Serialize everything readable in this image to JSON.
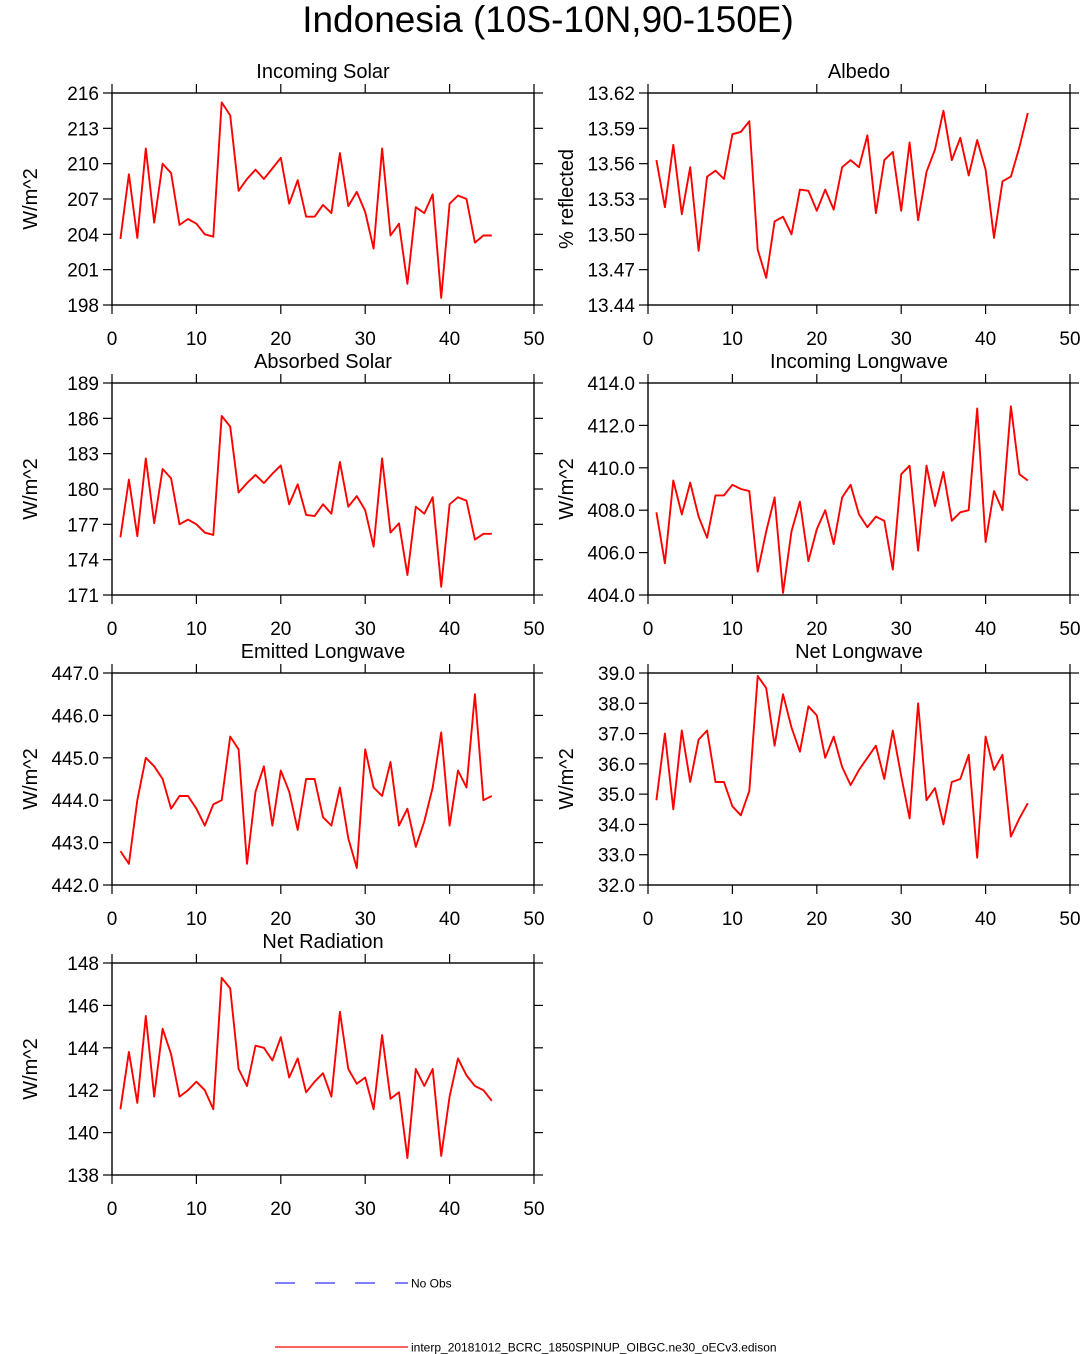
{
  "title": "Indonesia (10S-10N,90-150E)",
  "legend": [
    {
      "label": "No Obs",
      "color": "#0000ff",
      "style": "dashed"
    },
    {
      "label": "interp_20181012_BCRC_1850SPINUP_OIBGC.ne30_oECv3.edison",
      "color": "#ff0000",
      "style": "solid"
    }
  ],
  "chart_data": [
    {
      "type": "line",
      "title": "Incoming Solar",
      "ylabel": "W/m^2",
      "xlim": [
        0,
        50
      ],
      "xticks": [
        0,
        10,
        20,
        30,
        40,
        50
      ],
      "xtick_labels": [
        "0",
        "10",
        "20",
        "30",
        "40",
        "50"
      ],
      "ylim": [
        198,
        216
      ],
      "yticks": [
        198,
        201,
        204,
        207,
        210,
        213,
        216
      ],
      "ytick_labels": [
        "198",
        "201",
        "204",
        "207",
        "210",
        "213",
        "216"
      ],
      "series": [
        {
          "color": "#ff0000",
          "x": [
            1,
            2,
            3,
            4,
            5,
            6,
            7,
            8,
            9,
            10,
            11,
            12,
            13,
            14,
            15,
            16,
            17,
            18,
            19,
            20,
            21,
            22,
            23,
            24,
            25,
            26,
            27,
            28,
            29,
            30,
            31,
            32,
            33,
            34,
            35,
            36,
            37,
            38,
            39,
            40,
            41,
            42,
            43,
            44,
            45
          ],
          "values": [
            203.6,
            209.1,
            203.7,
            211.3,
            205.0,
            210.0,
            209.2,
            204.8,
            205.3,
            204.9,
            204.0,
            203.8,
            215.2,
            214.1,
            207.7,
            208.7,
            209.5,
            208.7,
            209.6,
            210.5,
            206.6,
            208.6,
            205.5,
            205.5,
            206.5,
            205.8,
            210.9,
            206.4,
            207.6,
            205.9,
            202.8,
            211.3,
            203.9,
            204.9,
            199.8,
            206.3,
            205.8,
            207.4,
            198.6,
            206.6,
            207.3,
            207.0,
            203.3,
            203.9,
            203.9
          ]
        }
      ]
    },
    {
      "type": "line",
      "title": "Albedo",
      "ylabel": "% reflected",
      "xlim": [
        0,
        50
      ],
      "xticks": [
        0,
        10,
        20,
        30,
        40,
        50
      ],
      "xtick_labels": [
        "0",
        "10",
        "20",
        "30",
        "40",
        "50"
      ],
      "ylim": [
        13.44,
        13.62
      ],
      "yticks": [
        13.44,
        13.47,
        13.5,
        13.53,
        13.56,
        13.59,
        13.62
      ],
      "ytick_labels": [
        "13.44",
        "13.47",
        "13.50",
        "13.53",
        "13.56",
        "13.59",
        "13.62"
      ],
      "series": [
        {
          "color": "#ff0000",
          "x": [
            1,
            2,
            3,
            4,
            5,
            6,
            7,
            8,
            9,
            10,
            11,
            12,
            13,
            14,
            15,
            16,
            17,
            18,
            19,
            20,
            21,
            22,
            23,
            24,
            25,
            26,
            27,
            28,
            29,
            30,
            31,
            32,
            33,
            34,
            35,
            36,
            37,
            38,
            39,
            40,
            41,
            42,
            43,
            44,
            45
          ],
          "values": [
            13.563,
            13.523,
            13.576,
            13.517,
            13.557,
            13.486,
            13.549,
            13.554,
            13.547,
            13.585,
            13.587,
            13.596,
            13.487,
            13.463,
            13.511,
            13.515,
            13.5,
            13.538,
            13.537,
            13.52,
            13.538,
            13.521,
            13.557,
            13.563,
            13.557,
            13.584,
            13.518,
            13.563,
            13.57,
            13.52,
            13.578,
            13.512,
            13.553,
            13.572,
            13.605,
            13.563,
            13.582,
            13.55,
            13.58,
            13.555,
            13.497,
            13.545,
            13.549,
            13.574,
            13.603
          ]
        }
      ]
    },
    {
      "type": "line",
      "title": "Absorbed Solar",
      "ylabel": "W/m^2",
      "xlim": [
        0,
        50
      ],
      "xticks": [
        0,
        10,
        20,
        30,
        40,
        50
      ],
      "xtick_labels": [
        "0",
        "10",
        "20",
        "30",
        "40",
        "50"
      ],
      "ylim": [
        171,
        189
      ],
      "yticks": [
        171,
        174,
        177,
        180,
        183,
        186,
        189
      ],
      "ytick_labels": [
        "171",
        "174",
        "177",
        "180",
        "183",
        "186",
        "189"
      ],
      "series": [
        {
          "color": "#ff0000",
          "x": [
            1,
            2,
            3,
            4,
            5,
            6,
            7,
            8,
            9,
            10,
            11,
            12,
            13,
            14,
            15,
            16,
            17,
            18,
            19,
            20,
            21,
            22,
            23,
            24,
            25,
            26,
            27,
            28,
            29,
            30,
            31,
            32,
            33,
            34,
            35,
            36,
            37,
            38,
            39,
            40,
            41,
            42,
            43,
            44,
            45
          ],
          "values": [
            175.9,
            180.8,
            176.0,
            182.6,
            177.1,
            181.7,
            180.9,
            177.0,
            177.4,
            177.0,
            176.3,
            176.1,
            186.2,
            185.3,
            179.7,
            180.5,
            181.2,
            180.5,
            181.3,
            182.0,
            178.7,
            180.4,
            177.8,
            177.7,
            178.7,
            177.9,
            182.3,
            178.5,
            179.4,
            178.2,
            175.1,
            182.6,
            176.3,
            177.1,
            172.7,
            178.5,
            177.9,
            179.3,
            171.7,
            178.7,
            179.3,
            179.0,
            175.7,
            176.2,
            176.2
          ]
        }
      ]
    },
    {
      "type": "line",
      "title": "Incoming Longwave",
      "ylabel": "W/m^2",
      "xlim": [
        0,
        50
      ],
      "xticks": [
        0,
        10,
        20,
        30,
        40,
        50
      ],
      "xtick_labels": [
        "0",
        "10",
        "20",
        "30",
        "40",
        "50"
      ],
      "ylim": [
        404.0,
        414.0
      ],
      "yticks": [
        404.0,
        406.0,
        408.0,
        410.0,
        412.0,
        414.0
      ],
      "ytick_labels": [
        "404.0",
        "406.0",
        "408.0",
        "410.0",
        "412.0",
        "414.0"
      ],
      "series": [
        {
          "color": "#ff0000",
          "x": [
            1,
            2,
            3,
            4,
            5,
            6,
            7,
            8,
            9,
            10,
            11,
            12,
            13,
            14,
            15,
            16,
            17,
            18,
            19,
            20,
            21,
            22,
            23,
            24,
            25,
            26,
            27,
            28,
            29,
            30,
            31,
            32,
            33,
            34,
            35,
            36,
            37,
            38,
            39,
            40,
            41,
            42,
            43,
            44,
            45
          ],
          "values": [
            407.9,
            405.5,
            409.4,
            407.8,
            409.3,
            407.7,
            406.7,
            408.7,
            408.7,
            409.2,
            409.0,
            408.9,
            405.1,
            407.0,
            408.6,
            404.1,
            407.0,
            408.4,
            405.6,
            407.1,
            408.0,
            406.4,
            408.6,
            409.2,
            407.8,
            407.2,
            407.7,
            407.5,
            405.2,
            409.7,
            410.1,
            406.1,
            410.1,
            408.2,
            409.8,
            407.5,
            407.9,
            408.0,
            412.8,
            406.5,
            408.9,
            408.0,
            412.9,
            409.7,
            409.4
          ]
        }
      ]
    },
    {
      "type": "line",
      "title": "Emitted Longwave",
      "ylabel": "W/m^2",
      "xlim": [
        0,
        50
      ],
      "xticks": [
        0,
        10,
        20,
        30,
        40,
        50
      ],
      "xtick_labels": [
        "0",
        "10",
        "20",
        "30",
        "40",
        "50"
      ],
      "ylim": [
        442.0,
        447.0
      ],
      "yticks": [
        442.0,
        443.0,
        444.0,
        445.0,
        446.0,
        447.0
      ],
      "ytick_labels": [
        "442.0",
        "443.0",
        "444.0",
        "445.0",
        "446.0",
        "447.0"
      ],
      "series": [
        {
          "color": "#ff0000",
          "x": [
            1,
            2,
            3,
            4,
            5,
            6,
            7,
            8,
            9,
            10,
            11,
            12,
            13,
            14,
            15,
            16,
            17,
            18,
            19,
            20,
            21,
            22,
            23,
            24,
            25,
            26,
            27,
            28,
            29,
            30,
            31,
            32,
            33,
            34,
            35,
            36,
            37,
            38,
            39,
            40,
            41,
            42,
            43,
            44,
            45
          ],
          "values": [
            442.8,
            442.5,
            444.0,
            445.0,
            444.8,
            444.5,
            443.8,
            444.1,
            444.1,
            443.8,
            443.4,
            443.9,
            444.0,
            445.5,
            445.2,
            442.5,
            444.2,
            444.8,
            443.4,
            444.7,
            444.2,
            443.3,
            444.5,
            444.5,
            443.6,
            443.4,
            444.3,
            443.1,
            442.4,
            445.2,
            444.3,
            444.1,
            444.9,
            443.4,
            443.8,
            442.9,
            443.5,
            444.3,
            445.6,
            443.4,
            444.7,
            444.3,
            446.5,
            444.0,
            444.1
          ]
        }
      ]
    },
    {
      "type": "line",
      "title": "Net Longwave",
      "ylabel": "W/m^2",
      "xlim": [
        0,
        50
      ],
      "xticks": [
        0,
        10,
        20,
        30,
        40,
        50
      ],
      "xtick_labels": [
        "0",
        "10",
        "20",
        "30",
        "40",
        "50"
      ],
      "ylim": [
        32.0,
        39.0
      ],
      "yticks": [
        32.0,
        33.0,
        34.0,
        35.0,
        36.0,
        37.0,
        38.0,
        39.0
      ],
      "ytick_labels": [
        "32.0",
        "33.0",
        "34.0",
        "35.0",
        "36.0",
        "37.0",
        "38.0",
        "39.0"
      ],
      "series": [
        {
          "color": "#ff0000",
          "x": [
            1,
            2,
            3,
            4,
            5,
            6,
            7,
            8,
            9,
            10,
            11,
            12,
            13,
            14,
            15,
            16,
            17,
            18,
            19,
            20,
            21,
            22,
            23,
            24,
            25,
            26,
            27,
            28,
            29,
            30,
            31,
            32,
            33,
            34,
            35,
            36,
            37,
            38,
            39,
            40,
            41,
            42,
            43,
            44,
            45
          ],
          "values": [
            34.8,
            37.0,
            34.5,
            37.1,
            35.4,
            36.8,
            37.1,
            35.4,
            35.4,
            34.6,
            34.3,
            35.1,
            38.9,
            38.5,
            36.6,
            38.3,
            37.2,
            36.4,
            37.9,
            37.6,
            36.2,
            36.9,
            35.9,
            35.3,
            35.8,
            36.2,
            36.6,
            35.5,
            37.1,
            35.6,
            34.2,
            38.0,
            34.8,
            35.2,
            34.0,
            35.4,
            35.5,
            36.3,
            32.9,
            36.9,
            35.8,
            36.3,
            33.6,
            34.2,
            34.7
          ]
        }
      ]
    },
    {
      "type": "line",
      "title": "Net Radiation",
      "ylabel": "W/m^2",
      "xlim": [
        0,
        50
      ],
      "xticks": [
        0,
        10,
        20,
        30,
        40,
        50
      ],
      "xtick_labels": [
        "0",
        "10",
        "20",
        "30",
        "40",
        "50"
      ],
      "ylim": [
        138,
        148
      ],
      "yticks": [
        138,
        140,
        142,
        144,
        146,
        148
      ],
      "ytick_labels": [
        "138",
        "140",
        "142",
        "144",
        "146",
        "148"
      ],
      "series": [
        {
          "color": "#ff0000",
          "x": [
            1,
            2,
            3,
            4,
            5,
            6,
            7,
            8,
            9,
            10,
            11,
            12,
            13,
            14,
            15,
            16,
            17,
            18,
            19,
            20,
            21,
            22,
            23,
            24,
            25,
            26,
            27,
            28,
            29,
            30,
            31,
            32,
            33,
            34,
            35,
            36,
            37,
            38,
            39,
            40,
            41,
            42,
            43,
            44,
            45
          ],
          "values": [
            141.1,
            143.8,
            141.4,
            145.5,
            141.7,
            144.9,
            143.7,
            141.7,
            142.0,
            142.4,
            142.0,
            141.1,
            147.3,
            146.8,
            143.0,
            142.2,
            144.1,
            144.0,
            143.4,
            144.5,
            142.6,
            143.5,
            141.9,
            142.4,
            142.8,
            141.7,
            145.7,
            143.0,
            142.3,
            142.6,
            141.1,
            144.6,
            141.6,
            141.9,
            138.8,
            143.0,
            142.2,
            143.0,
            138.9,
            141.7,
            143.5,
            142.7,
            142.2,
            142.0,
            141.5
          ]
        }
      ]
    }
  ]
}
